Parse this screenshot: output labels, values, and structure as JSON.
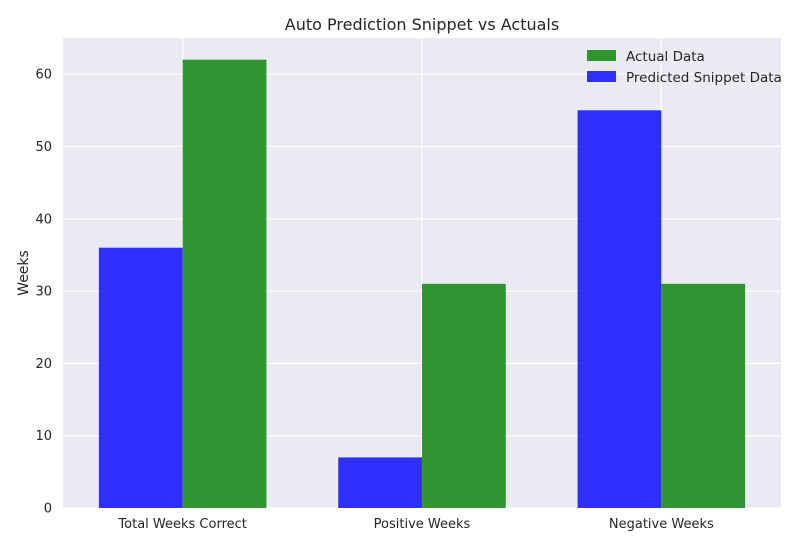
{
  "chart_data": {
    "type": "bar",
    "title": "Auto Prediction Snippet vs Actuals",
    "xlabel": "",
    "ylabel": "Weeks",
    "categories": [
      "Total Weeks Correct",
      "Positive Weeks",
      "Negative Weeks"
    ],
    "series": [
      {
        "name": "Predicted Snippet Data",
        "values": [
          36,
          7,
          55
        ],
        "color": "#0000ff",
        "opacity": 0.8
      },
      {
        "name": "Actual Data",
        "values": [
          62,
          31,
          31
        ],
        "color": "#008000",
        "opacity": 0.8
      }
    ],
    "ylim": [
      0,
      65
    ],
    "yticks": [
      0,
      10,
      20,
      30,
      40,
      50,
      60
    ],
    "grid": true,
    "legend": {
      "placement": "top-right",
      "order": [
        "Actual Data",
        "Predicted Snippet Data"
      ]
    },
    "style": {
      "background": "#eaeaf2",
      "grid_color": "#ffffff"
    }
  }
}
